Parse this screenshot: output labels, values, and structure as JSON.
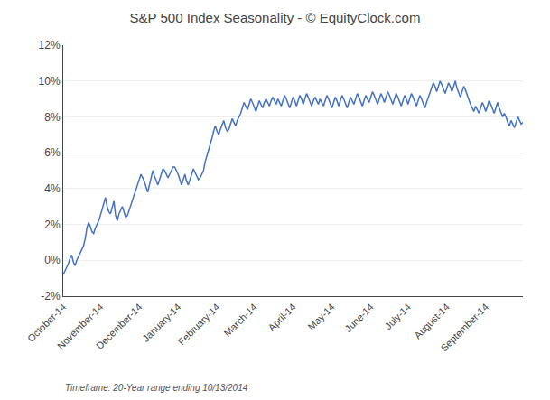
{
  "chart_data": {
    "type": "line",
    "title": "S&P 500 Index Seasonality - © EquityClock.com",
    "annotations": [
      "Timeframe: 20-Year range ending 10/13/2014"
    ],
    "categories": [
      "October-14",
      null,
      null,
      null,
      null,
      null,
      null,
      null,
      null,
      null,
      null,
      null,
      null,
      null,
      null,
      null,
      null,
      null,
      null,
      null,
      null,
      null,
      "November-14",
      null,
      null,
      null,
      null,
      null,
      null,
      null,
      null,
      null,
      null,
      null,
      null,
      null,
      null,
      null,
      null,
      null,
      null,
      null,
      null,
      null,
      null,
      "December-14",
      null,
      null,
      null,
      null,
      null,
      null,
      null,
      null,
      null,
      null,
      null,
      null,
      null,
      null,
      null,
      null,
      null,
      null,
      null,
      null,
      null,
      null,
      "January-14",
      null,
      null,
      null,
      null,
      null,
      null,
      null,
      null,
      null,
      null,
      null,
      null,
      null,
      null,
      null,
      null,
      null,
      null,
      null,
      null,
      null,
      null,
      "February-14",
      null,
      null,
      null,
      null,
      null,
      null,
      null,
      null,
      null,
      null,
      null,
      null,
      null,
      null,
      null,
      null,
      null,
      null,
      null,
      null,
      null,
      "March-14",
      null,
      null,
      null,
      null,
      null,
      null,
      null,
      null,
      null,
      null,
      null,
      null,
      null,
      null,
      null,
      null,
      null,
      null,
      null,
      null,
      null,
      null,
      "April-14",
      null,
      null,
      null,
      null,
      null,
      null,
      null,
      null,
      null,
      null,
      null,
      null,
      null,
      null,
      null,
      null,
      null,
      null,
      null,
      null,
      null,
      null,
      "May-14",
      null,
      null,
      null,
      null,
      null,
      null,
      null,
      null,
      null,
      null,
      null,
      null,
      null,
      null,
      null,
      null,
      null,
      null,
      null,
      null,
      null,
      null,
      "June-14",
      null,
      null,
      null,
      null,
      null,
      null,
      null,
      null,
      null,
      null,
      null,
      null,
      null,
      null,
      null,
      null,
      null,
      null,
      null,
      null,
      null,
      "July-14",
      null,
      null,
      null,
      null,
      null,
      null,
      null,
      null,
      null,
      null,
      null,
      null,
      null,
      null,
      null,
      null,
      null,
      null,
      null,
      null,
      null,
      null,
      "August-14",
      null,
      null,
      null,
      null,
      null,
      null,
      null,
      null,
      null,
      null,
      null,
      null,
      null,
      null,
      null,
      null,
      null,
      null,
      null,
      null,
      null,
      null,
      "September-14",
      null,
      null,
      null,
      null,
      null,
      null,
      null,
      null,
      null,
      null,
      null,
      null,
      null,
      null,
      null,
      null,
      null,
      null,
      null,
      null,
      null,
      null
    ],
    "values": [
      -0.008,
      -0.006,
      -0.004,
      -0.002,
      0.001,
      0.003,
      -0.001,
      -0.003,
      0.0,
      0.002,
      0.004,
      0.006,
      0.008,
      0.012,
      0.018,
      0.021,
      0.019,
      0.016,
      0.015,
      0.018,
      0.02,
      0.022,
      0.025,
      0.028,
      0.032,
      0.035,
      0.03,
      0.027,
      0.026,
      0.03,
      0.033,
      0.025,
      0.022,
      0.026,
      0.028,
      0.03,
      0.027,
      0.024,
      0.025,
      0.028,
      0.031,
      0.034,
      0.037,
      0.04,
      0.042,
      0.045,
      0.048,
      0.046,
      0.044,
      0.041,
      0.038,
      0.042,
      0.046,
      0.05,
      0.047,
      0.044,
      0.042,
      0.045,
      0.048,
      0.051,
      0.05,
      0.048,
      0.046,
      0.048,
      0.05,
      0.052,
      0.052,
      0.05,
      0.048,
      0.045,
      0.042,
      0.045,
      0.048,
      0.044,
      0.042,
      0.045,
      0.048,
      0.051,
      0.049,
      0.047,
      0.045,
      0.046,
      0.048,
      0.05,
      0.055,
      0.058,
      0.062,
      0.065,
      0.068,
      0.072,
      0.075,
      0.072,
      0.07,
      0.073,
      0.076,
      0.078,
      0.074,
      0.072,
      0.073,
      0.076,
      0.079,
      0.077,
      0.075,
      0.078,
      0.08,
      0.082,
      0.085,
      0.088,
      0.086,
      0.084,
      0.087,
      0.09,
      0.088,
      0.085,
      0.083,
      0.086,
      0.089,
      0.087,
      0.085,
      0.088,
      0.09,
      0.088,
      0.086,
      0.089,
      0.091,
      0.089,
      0.087,
      0.09,
      0.088,
      0.086,
      0.089,
      0.092,
      0.09,
      0.087,
      0.085,
      0.088,
      0.091,
      0.089,
      0.086,
      0.089,
      0.092,
      0.09,
      0.087,
      0.09,
      0.093,
      0.091,
      0.088,
      0.086,
      0.089,
      0.091,
      0.089,
      0.087,
      0.09,
      0.088,
      0.086,
      0.089,
      0.092,
      0.09,
      0.087,
      0.085,
      0.088,
      0.091,
      0.089,
      0.086,
      0.089,
      0.092,
      0.09,
      0.087,
      0.085,
      0.088,
      0.091,
      0.089,
      0.087,
      0.09,
      0.093,
      0.091,
      0.088,
      0.086,
      0.089,
      0.092,
      0.09,
      0.088,
      0.091,
      0.094,
      0.092,
      0.089,
      0.087,
      0.09,
      0.093,
      0.091,
      0.088,
      0.091,
      0.094,
      0.092,
      0.089,
      0.087,
      0.09,
      0.093,
      0.091,
      0.088,
      0.086,
      0.089,
      0.092,
      0.09,
      0.087,
      0.09,
      0.093,
      0.091,
      0.088,
      0.086,
      0.089,
      0.092,
      0.09,
      0.087,
      0.085,
      0.088,
      0.091,
      0.093,
      0.096,
      0.099,
      0.097,
      0.094,
      0.097,
      0.1,
      0.098,
      0.095,
      0.093,
      0.096,
      0.099,
      0.097,
      0.094,
      0.097,
      0.1,
      0.096,
      0.093,
      0.091,
      0.094,
      0.097,
      0.095,
      0.092,
      0.09,
      0.087,
      0.085,
      0.083,
      0.086,
      0.084,
      0.082,
      0.085,
      0.088,
      0.086,
      0.083,
      0.086,
      0.089,
      0.087,
      0.084,
      0.082,
      0.085,
      0.088,
      0.085,
      0.082,
      0.08,
      0.082,
      0.08,
      0.077,
      0.075,
      0.078,
      0.076,
      0.074,
      0.077,
      0.08,
      0.078,
      0.076,
      0.077
    ],
    "color": "#4472C4",
    "ylim": [
      -0.02,
      0.12
    ],
    "yticks": [
      {
        "value": -0.02,
        "label": "-2%"
      },
      {
        "value": 0.0,
        "label": "0%"
      },
      {
        "value": 0.02,
        "label": "2%"
      },
      {
        "value": 0.04,
        "label": "4%"
      },
      {
        "value": 0.06,
        "label": "6%"
      },
      {
        "value": 0.08,
        "label": "8%"
      },
      {
        "value": 0.1,
        "label": "10%"
      },
      {
        "value": 0.12,
        "label": "12%"
      }
    ],
    "grid": true
  }
}
